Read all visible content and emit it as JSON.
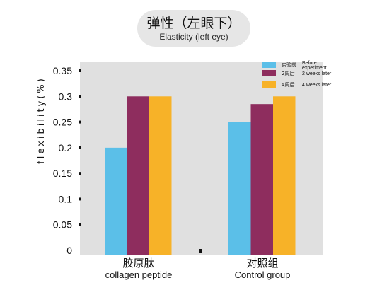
{
  "header": {
    "title_zh": "弹性（左眼下）",
    "title_en": "Elasticity (left eye)"
  },
  "chart_data": {
    "type": "bar",
    "ylabel": "flexibility(%)",
    "ylim": [
      0,
      0.35
    ],
    "yticks": [
      "0",
      "0.05",
      "0.1",
      "0.15",
      "0.2",
      "0.25",
      "0.3",
      "0.35"
    ],
    "categories": [
      {
        "zh": "胶原肽",
        "en": "collagen peptide"
      },
      {
        "zh": "对照组",
        "en": "Control group"
      }
    ],
    "series": [
      {
        "name_zh": "实验前",
        "name_en": "Before experiment",
        "color": "#5bbfe8",
        "values": [
          0.2,
          0.25
        ]
      },
      {
        "name_zh": "2周后",
        "name_en": "2 weeks later",
        "color": "#8e2d5e",
        "values": [
          0.3,
          0.285
        ]
      },
      {
        "name_zh": "4周后",
        "name_en": "4 weeks later",
        "color": "#f7b228",
        "values": [
          0.3,
          0.3
        ]
      }
    ],
    "plot_background": "#e0e0e0",
    "legend_position": "top-right",
    "grid": false
  }
}
